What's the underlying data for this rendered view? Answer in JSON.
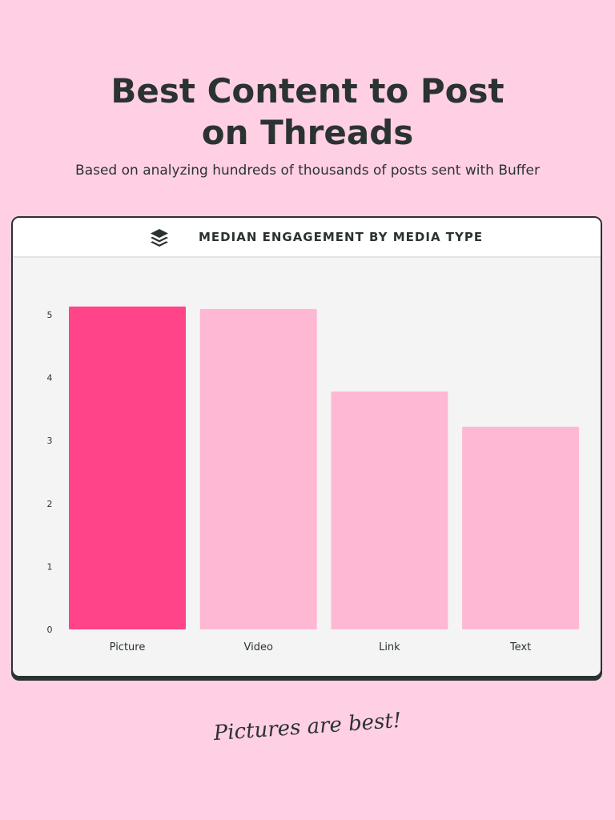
{
  "header": {
    "title_line1": "Best Content to Post",
    "title_line2": "on Threads",
    "subtitle": "Based on analyzing hundreds of thousands of posts sent with Buffer"
  },
  "card": {
    "logo_icon": "buffer-layers-icon"
  },
  "chart_data": {
    "type": "bar",
    "title": "MEDIAN ENGAGEMENT BY MEDIA TYPE",
    "categories": [
      "Picture",
      "Video",
      "Link",
      "Text"
    ],
    "values": [
      5.13,
      5.09,
      3.78,
      3.22
    ],
    "yticks": [
      "0",
      "1",
      "2",
      "3",
      "4",
      "5"
    ],
    "ylim": [
      0,
      5
    ],
    "grid": false,
    "highlight_color": "#ff448a",
    "bar_color": "#ffb8d3"
  },
  "footer": {
    "note": "Pictures are best!"
  }
}
